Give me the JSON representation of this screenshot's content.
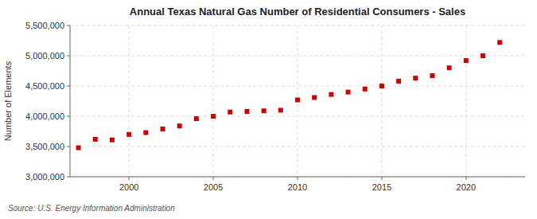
{
  "chart_data": {
    "type": "scatter",
    "title": "Annual Texas Natural Gas Number of Residential Consumers - Sales",
    "y_label": "Number of Elements",
    "source": "Source: U.S. Energy Information Administration",
    "x": [
      1997,
      1998,
      1999,
      2000,
      2001,
      2002,
      2003,
      2004,
      2005,
      2006,
      2007,
      2008,
      2009,
      2010,
      2011,
      2012,
      2013,
      2014,
      2015,
      2016,
      2017,
      2018,
      2019,
      2020,
      2021,
      2022
    ],
    "values": [
      3480000,
      3620000,
      3610000,
      3700000,
      3730000,
      3790000,
      3840000,
      3960000,
      4000000,
      4070000,
      4080000,
      4090000,
      4100000,
      4270000,
      4310000,
      4360000,
      4400000,
      4450000,
      4500000,
      4580000,
      4630000,
      4670000,
      4800000,
      4920000,
      5000000,
      5220000
    ],
    "color": "#cc0000",
    "marker": "square",
    "grid": true,
    "xlim": [
      1996.5,
      2023.5
    ],
    "xticks": [
      2000,
      2005,
      2010,
      2015,
      2020
    ],
    "ylim": [
      3000000,
      5500000
    ],
    "yticks": [
      {
        "value": 3000000,
        "label": "3,000,000"
      },
      {
        "value": 3500000,
        "label": "3,500,000"
      },
      {
        "value": 4000000,
        "label": "4,000,000"
      },
      {
        "value": 4500000,
        "label": "4,500,000"
      },
      {
        "value": 5000000,
        "label": "5,000,000"
      },
      {
        "value": 5500000,
        "label": "5,500,000"
      }
    ]
  }
}
